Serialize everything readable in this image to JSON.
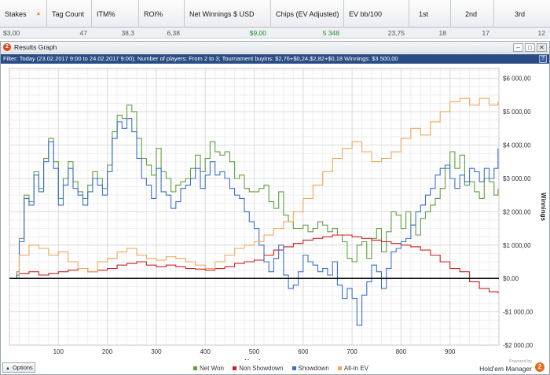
{
  "stats_header": {
    "columns": [
      {
        "label": "Stakes",
        "sort_icon": "sort-ascending-icon"
      },
      {
        "label": "Tag Count"
      },
      {
        "label": "ITM%"
      },
      {
        "label": "ROI%"
      },
      {
        "label": "Net Winnings $ USD"
      },
      {
        "label": "Chips (EV Adjusted)"
      },
      {
        "label": "EV bb/100"
      },
      {
        "label": "1st"
      },
      {
        "label": "2nd"
      },
      {
        "label": "3rd"
      }
    ],
    "row": [
      "$3,00",
      "47",
      "38,3",
      "6,38",
      "$9,00",
      "5 348",
      "23,75",
      "18",
      "17",
      "12"
    ],
    "positive_color": "#1f8c2b"
  },
  "window": {
    "title": "Results Graph",
    "app_icon": "hem-app-icon",
    "controls": [
      "minimize-icon",
      "maximize-icon",
      "close-icon"
    ],
    "filter_text": "Filter: Today (23.02.2017 9:00 to 24.02.2017 9:00); Number of players: From 2 to 3; Tournament buyins: $2,76+$0,24,$2,82+$0,18 Winnings: $3 500,00",
    "help_icon": "help-icon",
    "options_label": "Options",
    "powered_by": "Powered by",
    "brand": "Hold'em Manager",
    "brand_logo": "hem-logo-icon"
  },
  "chart_data": {
    "type": "line",
    "xlabel": "Hands",
    "ylabel": "Winnings",
    "xlim": [
      0,
      1000
    ],
    "ylim": [
      -2000,
      6300
    ],
    "x_ticks": [
      100,
      200,
      300,
      400,
      500,
      600,
      700,
      800,
      900
    ],
    "y_ticks": [
      -2000,
      -1000,
      0,
      1000,
      2000,
      3000,
      4000,
      5000,
      6000
    ],
    "y_tick_labels": [
      "-$2 000,00",
      "-$1 000,00",
      "$0,00",
      "$1 000,00",
      "$2 000,00",
      "$3 000,00",
      "$4 000,00",
      "$5 000,00",
      "$6 000,00"
    ],
    "grid": true,
    "legend_position": "bottom",
    "series": [
      {
        "name": "Net Won",
        "color": "#5f9e3f",
        "x": [
          0,
          15,
          20,
          30,
          40,
          50,
          60,
          70,
          80,
          90,
          100,
          110,
          120,
          130,
          140,
          150,
          160,
          170,
          180,
          190,
          200,
          210,
          220,
          230,
          240,
          250,
          260,
          270,
          280,
          290,
          300,
          310,
          320,
          330,
          340,
          350,
          360,
          370,
          380,
          390,
          400,
          410,
          420,
          430,
          440,
          450,
          460,
          470,
          480,
          490,
          500,
          510,
          520,
          530,
          540,
          550,
          560,
          570,
          580,
          590,
          600,
          610,
          620,
          630,
          640,
          650,
          660,
          670,
          680,
          690,
          700,
          710,
          720,
          730,
          740,
          750,
          760,
          770,
          780,
          790,
          800,
          810,
          820,
          830,
          840,
          850,
          860,
          870,
          880,
          890,
          900,
          910,
          920,
          930,
          940,
          950,
          960,
          970,
          980,
          990,
          998
        ],
        "y": [
          0,
          200,
          1200,
          2500,
          2300,
          3200,
          2700,
          3600,
          4200,
          3500,
          2400,
          3000,
          3500,
          2900,
          2600,
          2400,
          2800,
          3200,
          3000,
          2700,
          3400,
          4400,
          4900,
          4800,
          5200,
          5000,
          4200,
          3600,
          3400,
          3100,
          3900,
          3200,
          3000,
          2600,
          2800,
          2900,
          3000,
          3300,
          3700,
          3200,
          3600,
          4100,
          3800,
          3700,
          3800,
          3500,
          3000,
          3100,
          2700,
          2600,
          2600,
          2700,
          2800,
          2300,
          2100,
          2600,
          1900,
          1700,
          1500,
          1500,
          1600,
          1400,
          1500,
          1700,
          1600,
          1400,
          1500,
          1300,
          1100,
          600,
          500,
          1000,
          1100,
          600,
          1200,
          1500,
          800,
          1400,
          2000,
          1900,
          1500,
          2000,
          1600,
          1300,
          1800,
          2000,
          2200,
          2400,
          2700,
          3300,
          3800,
          3300,
          3700,
          2800,
          2900,
          2600,
          2400,
          3000,
          2900,
          2500,
          2700
        ]
      },
      {
        "name": "Non Showdown",
        "color": "#cc1f1f",
        "x": [
          0,
          20,
          40,
          60,
          80,
          100,
          120,
          140,
          160,
          180,
          200,
          220,
          240,
          260,
          280,
          300,
          320,
          340,
          360,
          380,
          400,
          420,
          440,
          460,
          480,
          500,
          520,
          540,
          560,
          580,
          600,
          620,
          640,
          660,
          680,
          700,
          720,
          740,
          760,
          780,
          800,
          820,
          840,
          860,
          880,
          900,
          920,
          940,
          960,
          980,
          998
        ],
        "y": [
          0,
          150,
          200,
          100,
          150,
          200,
          250,
          300,
          200,
          250,
          300,
          400,
          450,
          500,
          400,
          350,
          400,
          350,
          300,
          280,
          250,
          300,
          350,
          450,
          500,
          550,
          700,
          850,
          950,
          1050,
          1150,
          1200,
          1250,
          1300,
          1300,
          1250,
          1200,
          1150,
          1100,
          1050,
          1000,
          950,
          850,
          700,
          500,
          300,
          200,
          -100,
          -300,
          -400,
          -450
        ]
      },
      {
        "name": "Showdown",
        "color": "#3a6fd0",
        "x": [
          0,
          15,
          20,
          30,
          40,
          50,
          60,
          70,
          80,
          90,
          100,
          110,
          120,
          130,
          140,
          150,
          160,
          170,
          180,
          190,
          200,
          210,
          220,
          230,
          240,
          250,
          260,
          270,
          280,
          290,
          300,
          310,
          320,
          330,
          340,
          350,
          360,
          370,
          380,
          390,
          400,
          410,
          420,
          430,
          440,
          450,
          460,
          470,
          480,
          490,
          500,
          510,
          520,
          530,
          540,
          550,
          560,
          570,
          580,
          590,
          600,
          610,
          620,
          630,
          640,
          650,
          660,
          670,
          680,
          690,
          700,
          710,
          720,
          730,
          740,
          750,
          760,
          770,
          780,
          790,
          800,
          810,
          820,
          830,
          840,
          850,
          860,
          870,
          880,
          890,
          900,
          910,
          920,
          930,
          940,
          950,
          960,
          970,
          980,
          990,
          998
        ],
        "y": [
          0,
          100,
          1100,
          2400,
          2200,
          3100,
          2600,
          3500,
          4100,
          3300,
          2200,
          2800,
          3300,
          2700,
          2500,
          2200,
          2600,
          3000,
          2800,
          2500,
          3200,
          4200,
          4700,
          4500,
          4800,
          4400,
          3600,
          3000,
          2800,
          2400,
          3300,
          2600,
          2500,
          2100,
          2300,
          2700,
          2800,
          3000,
          3300,
          2700,
          3100,
          3500,
          3100,
          3200,
          3000,
          2700,
          2500,
          2400,
          2000,
          1700,
          1500,
          1000,
          500,
          200,
          600,
          1000,
          100,
          -300,
          -200,
          200,
          700,
          500,
          400,
          200,
          300,
          100,
          500,
          -200,
          -600,
          -300,
          -600,
          -1400,
          -500,
          -100,
          400,
          200,
          -300,
          300,
          800,
          900,
          1100,
          1200,
          1600,
          2000,
          2200,
          2500,
          2700,
          3100,
          3300,
          3400,
          3000,
          2700,
          3100,
          2900,
          3300,
          3200,
          2900,
          3300,
          3000,
          3300,
          3900
        ]
      },
      {
        "name": "All-In EV",
        "color": "#f2a65a",
        "x": [
          0,
          20,
          40,
          60,
          80,
          100,
          120,
          140,
          160,
          180,
          200,
          220,
          240,
          260,
          280,
          300,
          320,
          340,
          360,
          380,
          400,
          420,
          440,
          460,
          480,
          500,
          520,
          540,
          560,
          580,
          600,
          620,
          640,
          660,
          680,
          700,
          720,
          740,
          760,
          780,
          800,
          820,
          840,
          860,
          880,
          900,
          920,
          940,
          960,
          980,
          998
        ],
        "y": [
          0,
          700,
          1000,
          900,
          700,
          800,
          500,
          300,
          200,
          500,
          600,
          800,
          900,
          700,
          600,
          550,
          650,
          600,
          500,
          400,
          300,
          500,
          700,
          900,
          1000,
          1100,
          1300,
          1500,
          1700,
          2000,
          2400,
          2800,
          3200,
          3600,
          3900,
          4100,
          3800,
          3500,
          3600,
          3800,
          4200,
          4500,
          4300,
          4700,
          5000,
          5300,
          5400,
          5200,
          5400,
          5200,
          5300
        ]
      }
    ]
  }
}
